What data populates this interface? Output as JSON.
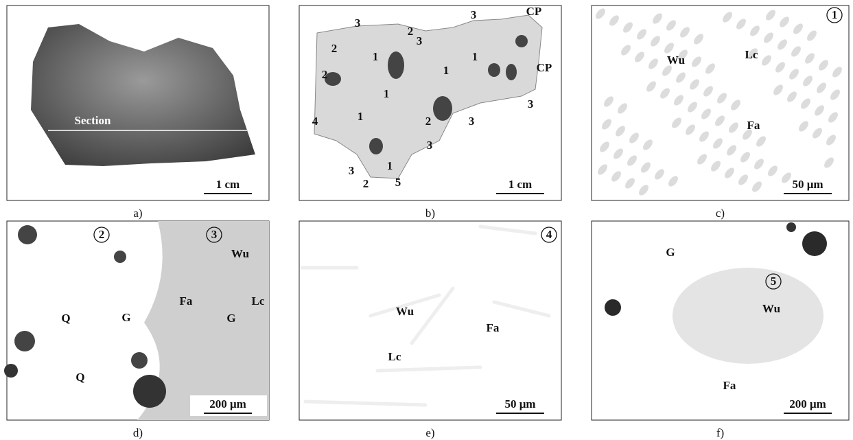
{
  "panels": [
    {
      "caption": "a)",
      "labels": [
        "Section"
      ],
      "scale": "1 cm"
    },
    {
      "caption": "b)",
      "labels": [
        "3",
        "2",
        "1",
        "2",
        "3",
        "3",
        "CP",
        "1",
        "1",
        "CP",
        "2",
        "1",
        "1",
        "4",
        "2",
        "3",
        "3",
        "3",
        "1",
        "3",
        "2",
        "5"
      ],
      "scale": "1 cm"
    },
    {
      "caption": "c)",
      "labels": [
        "1",
        "Wu",
        "Lc",
        "Fa"
      ],
      "scale": "50 μm"
    },
    {
      "caption": "d)",
      "labels": [
        "2",
        "3",
        "Wu",
        "Lc",
        "Fa",
        "G",
        "G",
        "Q",
        "Q"
      ],
      "scale": "200 μm"
    },
    {
      "caption": "e)",
      "labels": [
        "4",
        "Wu",
        "Fa",
        "Lc"
      ],
      "scale": "50 μm"
    },
    {
      "caption": "f)",
      "labels": [
        "G",
        "5",
        "Wu",
        "Fa"
      ],
      "scale": "200 μm"
    }
  ]
}
